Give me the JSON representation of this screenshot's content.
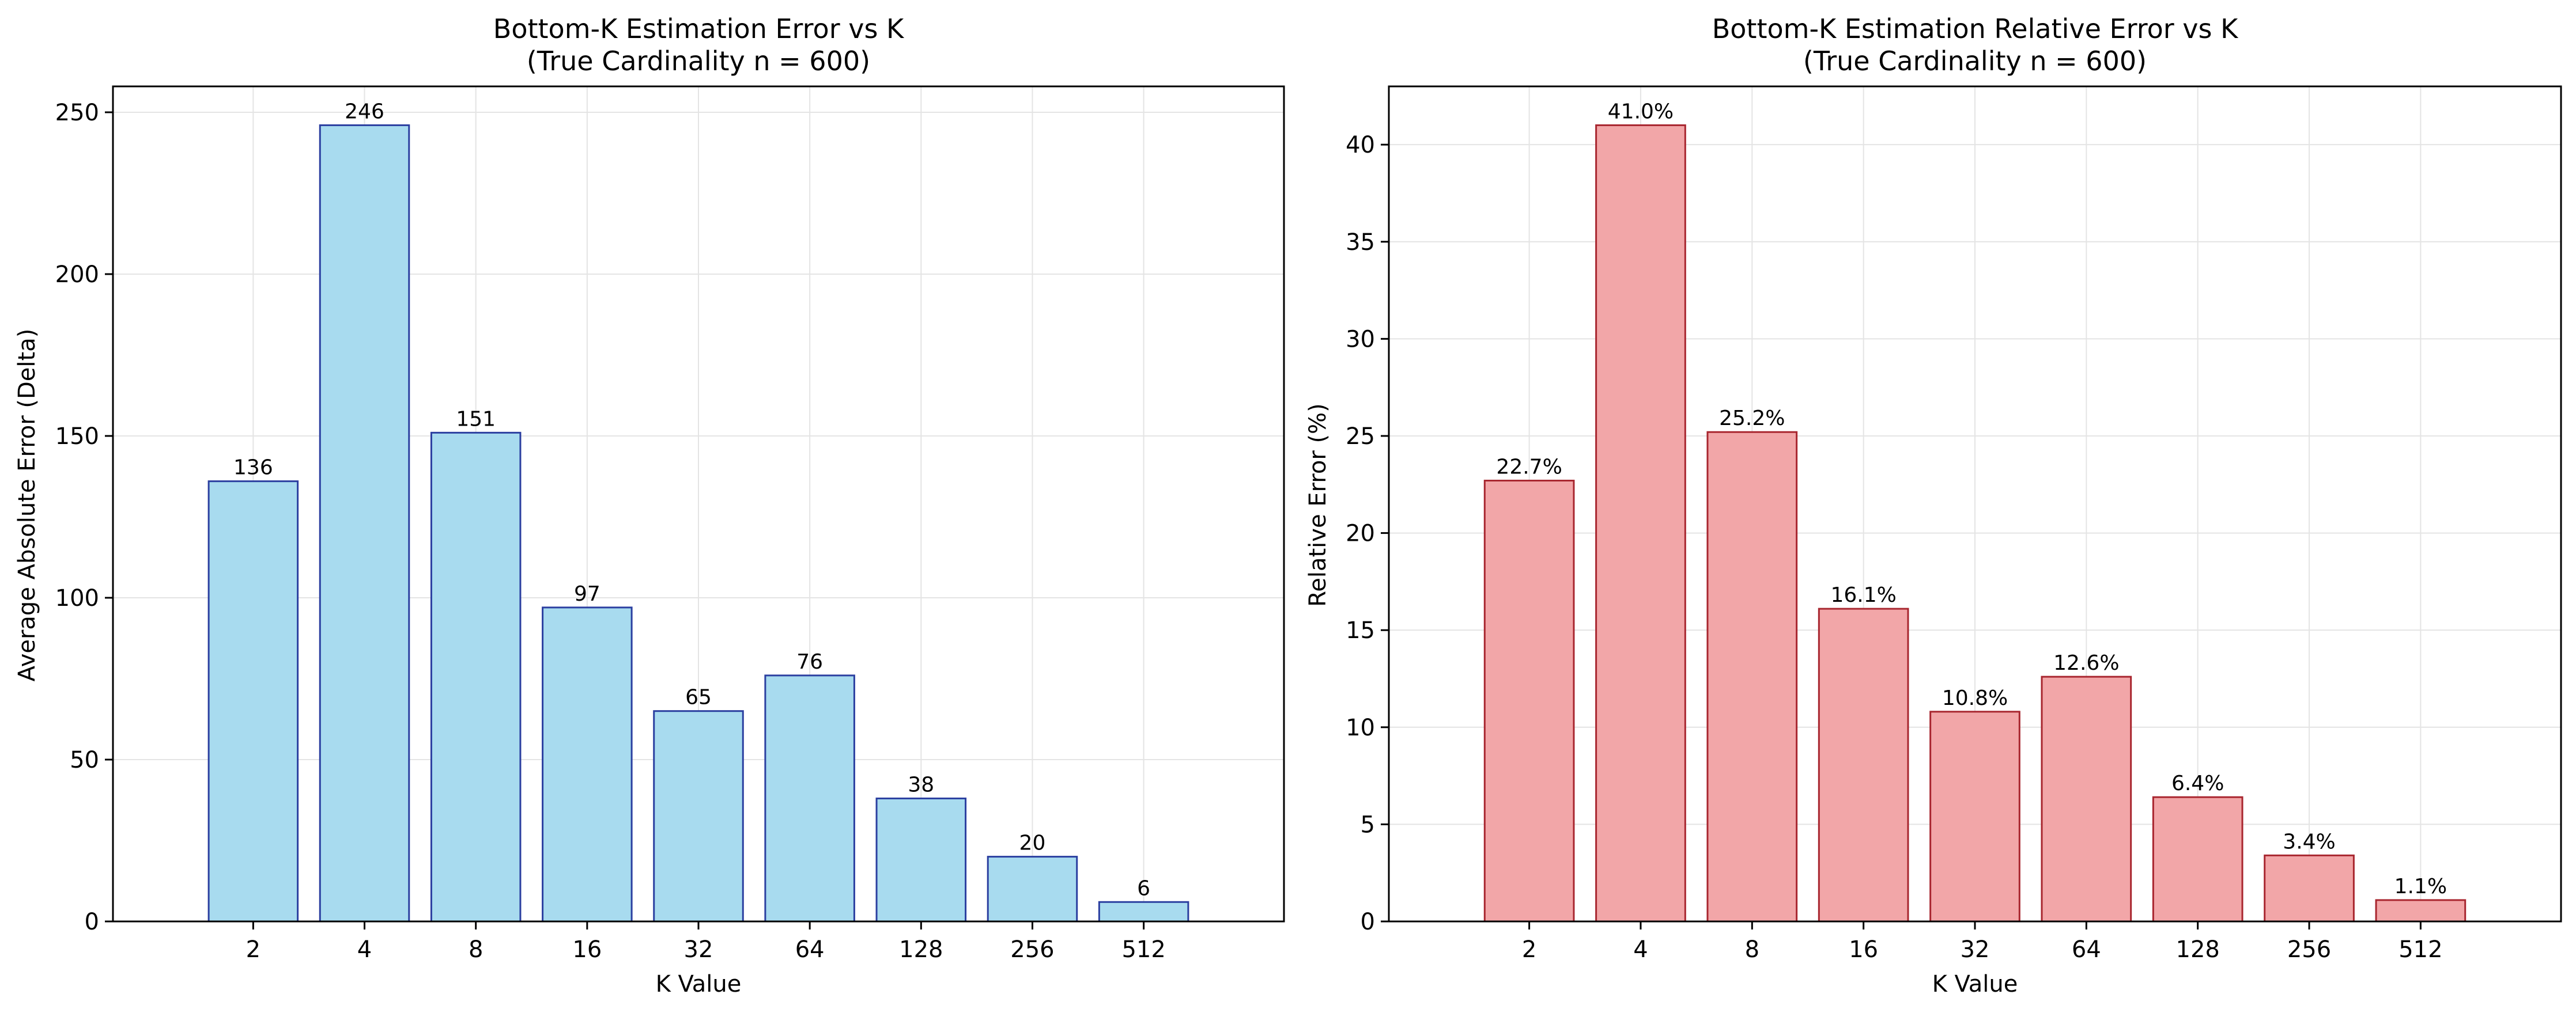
{
  "chart_data": [
    {
      "type": "bar",
      "title": "Bottom-K Estimation Error vs K",
      "subtitle": "(True Cardinality n = 600)",
      "xlabel": "K Value",
      "ylabel": "Average Absolute Error (Delta)",
      "categories": [
        "2",
        "4",
        "8",
        "16",
        "32",
        "64",
        "128",
        "256",
        "512"
      ],
      "values": [
        136,
        246,
        151,
        97,
        65,
        76,
        38,
        20,
        6
      ],
      "value_labels": [
        "136",
        "246",
        "151",
        "97",
        "65",
        "76",
        "38",
        "20",
        "6"
      ],
      "ylim": [
        0,
        258
      ],
      "yticks": [
        0,
        50,
        100,
        150,
        200,
        250
      ],
      "grid": true,
      "bar_color": "#a8dbef",
      "edge_color": "#2b3fa0"
    },
    {
      "type": "bar",
      "title": "Bottom-K Estimation Relative Error vs K",
      "subtitle": "(True Cardinality n = 600)",
      "xlabel": "K Value",
      "ylabel": "Relative Error (%)",
      "categories": [
        "2",
        "4",
        "8",
        "16",
        "32",
        "64",
        "128",
        "256",
        "512"
      ],
      "values": [
        22.7,
        41.0,
        25.2,
        16.1,
        10.8,
        12.6,
        6.4,
        3.4,
        1.1
      ],
      "value_labels": [
        "22.7%",
        "41.0%",
        "25.2%",
        "16.1%",
        "10.8%",
        "12.6%",
        "6.4%",
        "3.4%",
        "1.1%"
      ],
      "ylim": [
        0,
        43
      ],
      "yticks": [
        0,
        5,
        10,
        15,
        20,
        25,
        30,
        35,
        40
      ],
      "grid": true,
      "bar_color": "#f2a6a8",
      "edge_color": "#a8262f"
    }
  ]
}
